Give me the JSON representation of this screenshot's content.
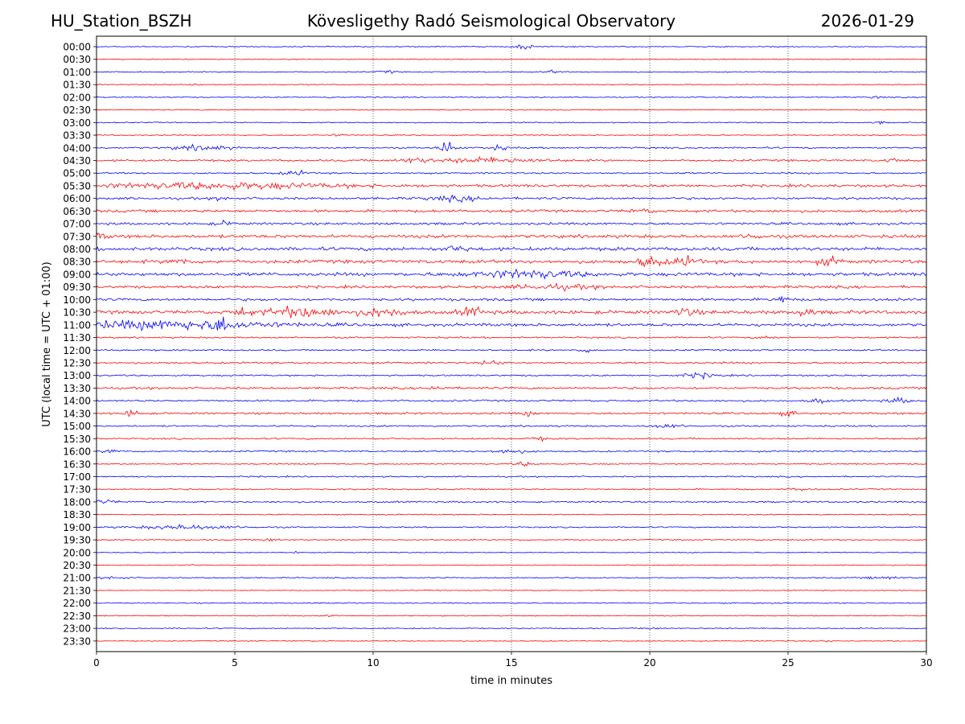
{
  "header": {
    "station": "HU_Station_BSZH",
    "observatory": "Kövesligethy Radó Seismological Observatory",
    "date": "2026-01-29"
  },
  "chart_data": {
    "type": "line",
    "title": "Kövesligethy Radó Seismological Observatory",
    "xlabel": "time in minutes",
    "ylabel": "UTC (local time = UTC + 01:00)",
    "xlim": [
      0,
      30
    ],
    "x_ticks": [
      0,
      5,
      10,
      15,
      20,
      25,
      30
    ],
    "x_tick_labels": [
      "0",
      "5",
      "10",
      "15",
      "20",
      "25",
      "30"
    ],
    "grid": "vertical dotted at 5-minute intervals",
    "trace_colors": [
      "#0000ff",
      "#ff0000"
    ],
    "rows": [
      {
        "label": "00:00",
        "noise": 0.8,
        "events": [
          {
            "t": 15.5,
            "amp": 3,
            "dur": 0.4
          }
        ]
      },
      {
        "label": "00:30",
        "noise": 0.6,
        "events": []
      },
      {
        "label": "01:00",
        "noise": 0.8,
        "events": [
          {
            "t": 10.5,
            "amp": 2,
            "dur": 0.3
          },
          {
            "t": 16.5,
            "amp": 2,
            "dur": 0.3
          }
        ]
      },
      {
        "label": "01:30",
        "noise": 0.7,
        "events": [
          {
            "t": 3.5,
            "amp": 2,
            "dur": 0.2
          }
        ]
      },
      {
        "label": "02:00",
        "noise": 0.8,
        "events": [
          {
            "t": 8.6,
            "amp": 2.5,
            "dur": 0.2
          },
          {
            "t": 28.2,
            "amp": 2,
            "dur": 0.2
          }
        ]
      },
      {
        "label": "02:30",
        "noise": 0.7,
        "events": []
      },
      {
        "label": "03:00",
        "noise": 0.8,
        "events": [
          {
            "t": 28.3,
            "amp": 2,
            "dur": 0.2
          }
        ]
      },
      {
        "label": "03:30",
        "noise": 0.8,
        "events": [
          {
            "t": 8.8,
            "amp": 1.5,
            "dur": 0.3
          }
        ]
      },
      {
        "label": "04:00",
        "noise": 1.2,
        "events": [
          {
            "t": 3.8,
            "amp": 3.5,
            "dur": 1.0
          },
          {
            "t": 12.7,
            "amp": 10,
            "dur": 0.3
          },
          {
            "t": 14.5,
            "amp": 3,
            "dur": 0.4
          }
        ]
      },
      {
        "label": "04:30",
        "noise": 1.5,
        "events": [
          {
            "t": 11.5,
            "amp": 3,
            "dur": 0.5
          },
          {
            "t": 14.2,
            "amp": 3.5,
            "dur": 2.0
          },
          {
            "t": 28.8,
            "amp": 2.5,
            "dur": 0.3
          }
        ]
      },
      {
        "label": "05:00",
        "noise": 1.2,
        "events": [
          {
            "t": 7.2,
            "amp": 3,
            "dur": 0.5
          }
        ]
      },
      {
        "label": "05:30",
        "noise": 2.0,
        "events": [
          {
            "t": 4.5,
            "amp": 4,
            "dur": 4.5
          }
        ]
      },
      {
        "label": "06:00",
        "noise": 1.8,
        "events": [
          {
            "t": 13.0,
            "amp": 3,
            "dur": 1.0
          },
          {
            "t": 4.5,
            "amp": 3,
            "dur": 0.2
          }
        ]
      },
      {
        "label": "06:30",
        "noise": 2.0,
        "events": [
          {
            "t": 19.7,
            "amp": 3,
            "dur": 0.4
          }
        ]
      },
      {
        "label": "07:00",
        "noise": 1.8,
        "events": [
          {
            "t": 4.6,
            "amp": 3,
            "dur": 0.3
          }
        ]
      },
      {
        "label": "07:30",
        "noise": 2.4,
        "events": [
          {
            "t": 0.1,
            "amp": 4,
            "dur": 0.3
          },
          {
            "t": 23.7,
            "amp": 4,
            "dur": 0.3
          }
        ]
      },
      {
        "label": "08:00",
        "noise": 2.6,
        "events": [
          {
            "t": 13.0,
            "amp": 4,
            "dur": 0.4
          }
        ]
      },
      {
        "label": "08:30",
        "noise": 2.6,
        "events": [
          {
            "t": 3.0,
            "amp": 5,
            "dur": 0.3
          },
          {
            "t": 20.0,
            "amp": 7,
            "dur": 0.4
          },
          {
            "t": 21.3,
            "amp": 6,
            "dur": 0.5
          },
          {
            "t": 26.5,
            "amp": 5,
            "dur": 0.4
          }
        ]
      },
      {
        "label": "09:00",
        "noise": 2.6,
        "events": [
          {
            "t": 15.5,
            "amp": 5,
            "dur": 2.0
          }
        ]
      },
      {
        "label": "09:30",
        "noise": 2.0,
        "events": [
          {
            "t": 16.5,
            "amp": 3,
            "dur": 1.5
          }
        ]
      },
      {
        "label": "10:00",
        "noise": 2.0,
        "events": [
          {
            "t": 24.8,
            "amp": 4,
            "dur": 0.3
          }
        ]
      },
      {
        "label": "10:30",
        "noise": 2.6,
        "events": [
          {
            "t": 5.2,
            "amp": 6,
            "dur": 0.3
          },
          {
            "t": 7.3,
            "amp": 7,
            "dur": 1.2
          },
          {
            "t": 10.3,
            "amp": 6,
            "dur": 0.8
          },
          {
            "t": 13.6,
            "amp": 7,
            "dur": 0.4
          },
          {
            "t": 21.3,
            "amp": 5,
            "dur": 0.4
          },
          {
            "t": 25.6,
            "amp": 5,
            "dur": 0.3
          }
        ]
      },
      {
        "label": "11:00",
        "noise": 2.2,
        "events": [
          {
            "t": 2.5,
            "amp": 6,
            "dur": 4.0
          },
          {
            "t": 4.5,
            "amp": 8,
            "dur": 0.3
          }
        ]
      },
      {
        "label": "11:30",
        "noise": 1.2,
        "events": [
          {
            "t": 24.2,
            "amp": 2.5,
            "dur": 0.3
          }
        ]
      },
      {
        "label": "12:00",
        "noise": 1.2,
        "events": [
          {
            "t": 17.7,
            "amp": 2.5,
            "dur": 0.3
          }
        ]
      },
      {
        "label": "12:30",
        "noise": 1.4,
        "events": [
          {
            "t": 14.3,
            "amp": 3,
            "dur": 0.4
          }
        ]
      },
      {
        "label": "13:00",
        "noise": 1.2,
        "events": [
          {
            "t": 21.8,
            "amp": 3.5,
            "dur": 0.6
          }
        ]
      },
      {
        "label": "13:30",
        "noise": 1.6,
        "events": [
          {
            "t": 12.3,
            "amp": 3,
            "dur": 0.3
          }
        ]
      },
      {
        "label": "14:00",
        "noise": 1.4,
        "events": [
          {
            "t": 26.1,
            "amp": 3.5,
            "dur": 0.3
          },
          {
            "t": 29.0,
            "amp": 3.5,
            "dur": 0.4
          }
        ]
      },
      {
        "label": "14:30",
        "noise": 1.5,
        "events": [
          {
            "t": 1.3,
            "amp": 4.5,
            "dur": 0.3
          },
          {
            "t": 15.6,
            "amp": 3,
            "dur": 0.3
          },
          {
            "t": 25.0,
            "amp": 3,
            "dur": 0.3
          }
        ]
      },
      {
        "label": "15:00",
        "noise": 1.2,
        "events": [
          {
            "t": 20.6,
            "amp": 2.5,
            "dur": 0.6
          }
        ]
      },
      {
        "label": "15:30",
        "noise": 1.2,
        "events": [
          {
            "t": 16.0,
            "amp": 2.5,
            "dur": 0.3
          }
        ]
      },
      {
        "label": "16:00",
        "noise": 1.2,
        "events": [
          {
            "t": 0.6,
            "amp": 3,
            "dur": 0.3
          },
          {
            "t": 14.9,
            "amp": 3,
            "dur": 0.6
          }
        ]
      },
      {
        "label": "16:30",
        "noise": 1.0,
        "events": [
          {
            "t": 15.4,
            "amp": 3,
            "dur": 0.3
          }
        ]
      },
      {
        "label": "17:00",
        "noise": 1.0,
        "events": []
      },
      {
        "label": "17:30",
        "noise": 1.0,
        "events": [
          {
            "t": 25.5,
            "amp": 2.5,
            "dur": 0.4
          }
        ]
      },
      {
        "label": "18:00",
        "noise": 1.2,
        "events": [
          {
            "t": 0.3,
            "amp": 2.5,
            "dur": 0.4
          }
        ]
      },
      {
        "label": "18:30",
        "noise": 0.8,
        "events": []
      },
      {
        "label": "19:00",
        "noise": 1.0,
        "events": [
          {
            "t": 3.3,
            "amp": 3,
            "dur": 1.8
          }
        ]
      },
      {
        "label": "19:30",
        "noise": 0.9,
        "events": [
          {
            "t": 6.2,
            "amp": 3,
            "dur": 0.3
          }
        ]
      },
      {
        "label": "20:00",
        "noise": 0.7,
        "events": [
          {
            "t": 7.2,
            "amp": 2,
            "dur": 0.1
          }
        ]
      },
      {
        "label": "20:30",
        "noise": 0.6,
        "events": [
          {
            "t": 3.4,
            "amp": 1.5,
            "dur": 0.1
          }
        ]
      },
      {
        "label": "21:00",
        "noise": 0.9,
        "events": [
          {
            "t": 0.6,
            "amp": 2,
            "dur": 0.5
          },
          {
            "t": 28.5,
            "amp": 2,
            "dur": 0.6
          }
        ]
      },
      {
        "label": "21:30",
        "noise": 0.6,
        "events": []
      },
      {
        "label": "22:00",
        "noise": 0.8,
        "events": []
      },
      {
        "label": "22:30",
        "noise": 0.7,
        "events": [
          {
            "t": 8.5,
            "amp": 1.5,
            "dur": 0.2
          }
        ]
      },
      {
        "label": "23:00",
        "noise": 0.8,
        "events": [
          {
            "t": 20.0,
            "amp": 1.8,
            "dur": 0.3
          }
        ]
      },
      {
        "label": "23:30",
        "noise": 0.7,
        "events": [
          {
            "t": 26.4,
            "amp": 1.5,
            "dur": 0.2
          }
        ]
      }
    ]
  }
}
